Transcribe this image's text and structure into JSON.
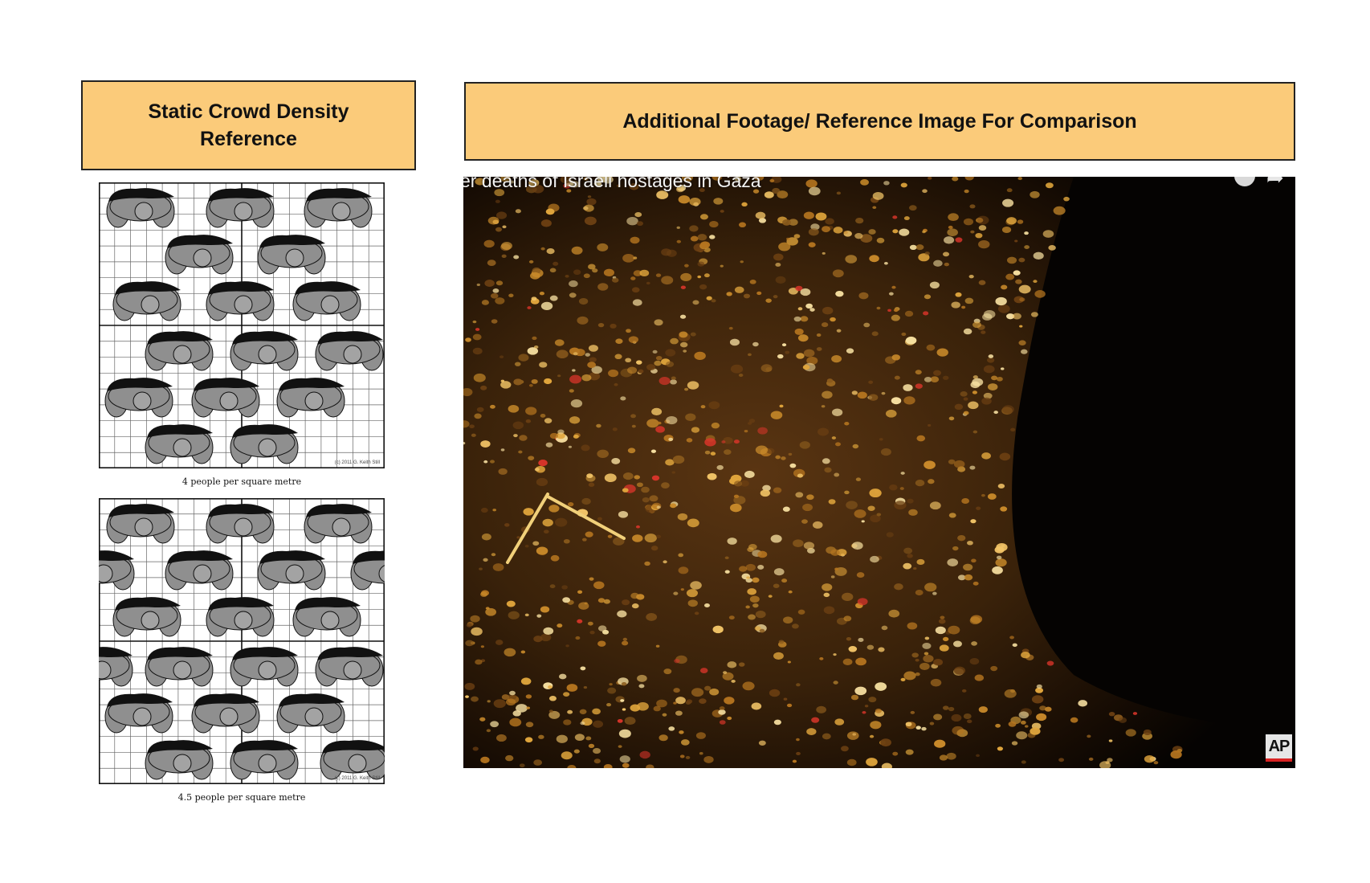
{
  "left_panel": {
    "header": [
      "Static Crowd Density",
      "Reference"
    ],
    "diagrams": [
      {
        "caption": "4 people per square metre",
        "copyright": "(c) 2011 G. Keith Still",
        "density_per_sqm": 4
      },
      {
        "caption": "4.5 people per square metre",
        "copyright": "(c) 2011 G. Keith Still",
        "density_per_sqm": 4.5
      }
    ]
  },
  "right_panel": {
    "header": "Additional Footage/ Reference Image For Comparison",
    "video": {
      "title": "er deaths of Israeli hostages in Gaza",
      "watermark": "AP",
      "icons": [
        "watch-later-icon",
        "share-icon"
      ]
    }
  },
  "colors": {
    "header_fill": "#fbcb7a",
    "figure_gray": "#8f8f8f",
    "crowd_orange": "#c98a2a",
    "watermark_red": "#d92323"
  }
}
